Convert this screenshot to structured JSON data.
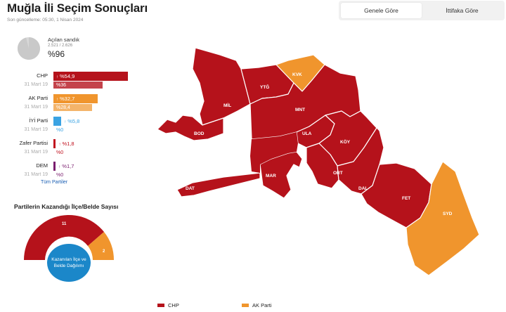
{
  "header": {
    "title": "Muğla İli Seçim Sonuçları",
    "updated": "Son güncelleme: 05:30, 1 Nisan 2024"
  },
  "tabs": [
    {
      "label": "Genele Göre",
      "active": true
    },
    {
      "label": "İttifaka Göre",
      "active": false
    }
  ],
  "ballot": {
    "label": "Açılan sandık",
    "count": "2.521 / 2.626",
    "percent_text": "%96",
    "fraction": 0.96
  },
  "parties": [
    {
      "name": "CHP",
      "color": "#b5121b",
      "prev_color": "#c4434b",
      "value_text": "%54,9",
      "value": 54.9,
      "prev_label": "31 Mart 19",
      "prev_text": "%36",
      "prev": 36
    },
    {
      "name": "AK Parti",
      "color": "#f0952d",
      "prev_color": "#f4b46a",
      "value_text": "%32,7",
      "value": 32.7,
      "prev_label": "31 Mart 19",
      "prev_text": "%28,4",
      "prev": 28.4
    },
    {
      "name": "İYİ Parti",
      "color": "#3aa3e3",
      "prev_color": "#7cc3ee",
      "value_text": "%5,8",
      "value": 5.8,
      "prev_label": "31 Mart 19",
      "prev_text": "%0",
      "prev": 0
    },
    {
      "name": "Zafer Partisi",
      "color": "#c1121f",
      "prev_color": "#c1121f",
      "value_text": "%1,8",
      "value": 1.8,
      "prev_label": "31 Mart 19",
      "prev_text": "%0",
      "prev": 0
    },
    {
      "name": "DEM",
      "color": "#7a1d6e",
      "prev_color": "#7a1d6e",
      "value_text": "%1,7",
      "value": 1.7,
      "prev_label": "31 Mart 19",
      "prev_text": "%0",
      "prev": 0
    }
  ],
  "all_parties_link": "Tüm Partiler",
  "districts_panel": {
    "title": "Partilerin Kazandığı İlçe/Belde Sayısı",
    "chp_count": "11",
    "akp_count": "2",
    "button_line1": "Kazanılan İlçe ve",
    "button_line2": "Belde Dağılımı"
  },
  "map": {
    "districts": [
      {
        "code": "MİL",
        "winner": "CHP"
      },
      {
        "code": "YTĞ",
        "winner": "CHP"
      },
      {
        "code": "KVK",
        "winner": "AK Parti"
      },
      {
        "code": "MNT",
        "winner": "CHP"
      },
      {
        "code": "BOD",
        "winner": "CHP"
      },
      {
        "code": "ULA",
        "winner": "CHP"
      },
      {
        "code": "KÖY",
        "winner": "CHP"
      },
      {
        "code": "MAR",
        "winner": "CHP"
      },
      {
        "code": "ORT",
        "winner": "CHP"
      },
      {
        "code": "DAL",
        "winner": "CHP"
      },
      {
        "code": "FET",
        "winner": "CHP"
      },
      {
        "code": "DAT",
        "winner": "CHP"
      },
      {
        "code": "SYD",
        "winner": "AK Parti"
      }
    ]
  },
  "legend": [
    {
      "label": "CHP",
      "color": "#b5121b"
    },
    {
      "label": "AK Parti",
      "color": "#f0952d"
    }
  ]
}
